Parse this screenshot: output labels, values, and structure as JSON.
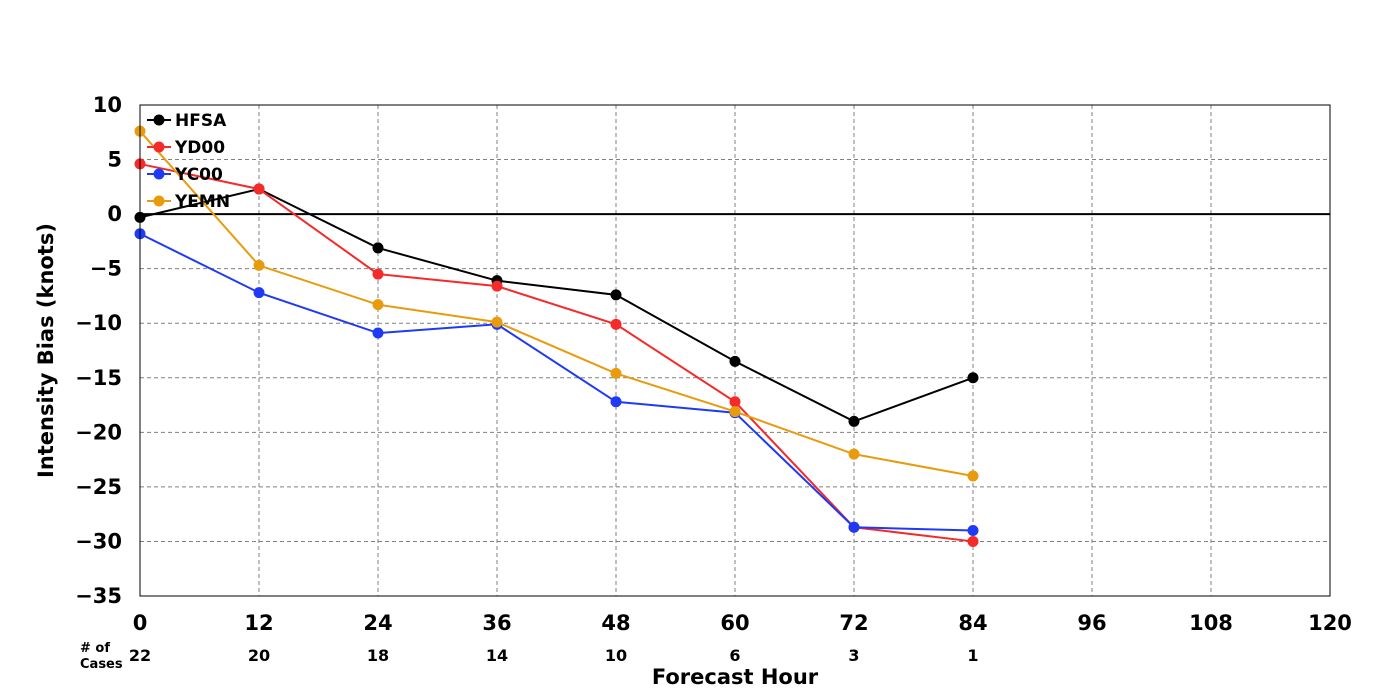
{
  "chart_data": {
    "type": "line",
    "xlabel": "Forecast Hour",
    "ylabel": "Intensity Bias (knots)",
    "xlim": [
      0,
      120
    ],
    "ylim": [
      -35,
      10
    ],
    "x_ticks": [
      0,
      12,
      24,
      36,
      48,
      60,
      72,
      84,
      96,
      108,
      120
    ],
    "x_tick_labels": [
      "0",
      "12",
      "24",
      "36",
      "48",
      "60",
      "72",
      "84",
      "96",
      "108",
      "120"
    ],
    "y_ticks": [
      10,
      5,
      0,
      -5,
      -10,
      -15,
      -20,
      -25,
      -30,
      -35
    ],
    "y_tick_labels": [
      "10",
      "5",
      "0",
      "−5",
      "−10",
      "−15",
      "−20",
      "−25",
      "−30",
      "−35"
    ],
    "grid": true,
    "zero_line": true,
    "legend_position": "top-left",
    "cases_title": [
      "# of",
      "Cases"
    ],
    "cases": [
      {
        "x": 0,
        "n": "22"
      },
      {
        "x": 12,
        "n": "20"
      },
      {
        "x": 24,
        "n": "18"
      },
      {
        "x": 36,
        "n": "14"
      },
      {
        "x": 48,
        "n": "10"
      },
      {
        "x": 60,
        "n": "6"
      },
      {
        "x": 72,
        "n": "3"
      },
      {
        "x": 84,
        "n": "1"
      }
    ],
    "x": [
      0,
      12,
      24,
      36,
      48,
      60,
      72,
      84
    ],
    "series": [
      {
        "name": "HFSA",
        "color": "#000000",
        "values": [
          -0.3,
          2.3,
          -3.1,
          -6.1,
          -7.4,
          -13.5,
          -19.0,
          -15.0
        ]
      },
      {
        "name": "YD00",
        "color": "#f52a2a",
        "values": [
          4.6,
          2.3,
          -5.5,
          -6.6,
          -10.1,
          -17.2,
          -28.7,
          -30.0
        ]
      },
      {
        "name": "YC00",
        "color": "#1f3af5",
        "values": [
          -1.8,
          -7.2,
          -10.9,
          -10.1,
          -17.2,
          -18.2,
          -28.7,
          -29.0
        ]
      },
      {
        "name": "YEMN",
        "color": "#e89b0c",
        "values": [
          7.6,
          -4.7,
          -8.3,
          -9.9,
          -14.6,
          -18.1,
          -22.0,
          -24.0
        ]
      }
    ]
  }
}
